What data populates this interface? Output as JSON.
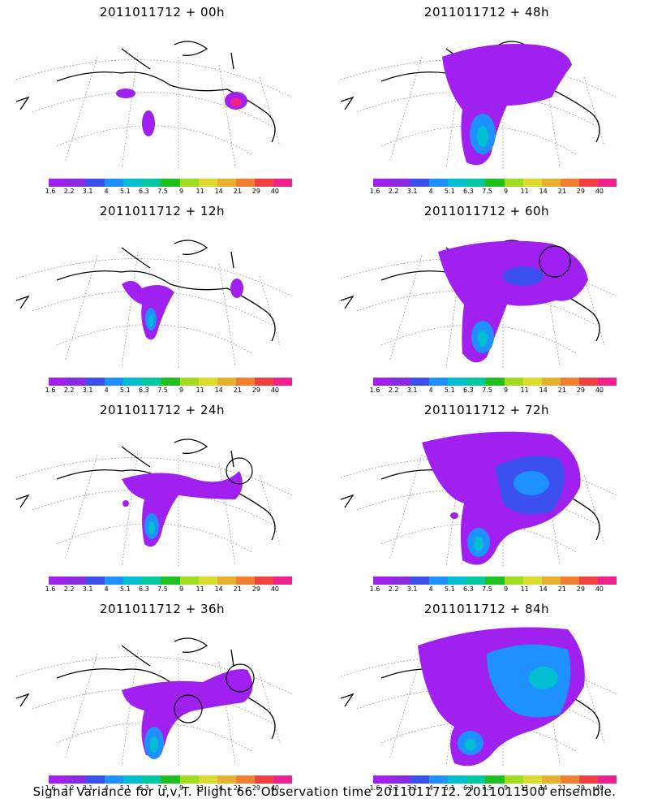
{
  "panels": [
    {
      "title": "2011011712 + 00h"
    },
    {
      "title": "2011011712 + 48h"
    },
    {
      "title": "2011011712 + 12h"
    },
    {
      "title": "2011011712 + 60h"
    },
    {
      "title": "2011011712 + 24h"
    },
    {
      "title": "2011011712 + 72h"
    },
    {
      "title": "2011011712 + 36h"
    },
    {
      "title": "2011011712 + 84h"
    }
  ],
  "colorbar": {
    "labels": [
      "1.6",
      "2.2",
      "3.1",
      "4",
      "5.1",
      "6.3",
      "7.5",
      "9",
      "11",
      "14",
      "21",
      "29",
      "40"
    ],
    "colors": [
      "#a020f0",
      "#8a2be2",
      "#3c50f0",
      "#1e90ff",
      "#00bfd0",
      "#00c8a0",
      "#20c020",
      "#a0dc20",
      "#dcdc30",
      "#e8b030",
      "#f08030",
      "#f04040",
      "#f0208c"
    ]
  },
  "footer": "Signal Variance for u,v,T. Flight 66. Observation time 2011011712. 2011011500 ensemble."
}
